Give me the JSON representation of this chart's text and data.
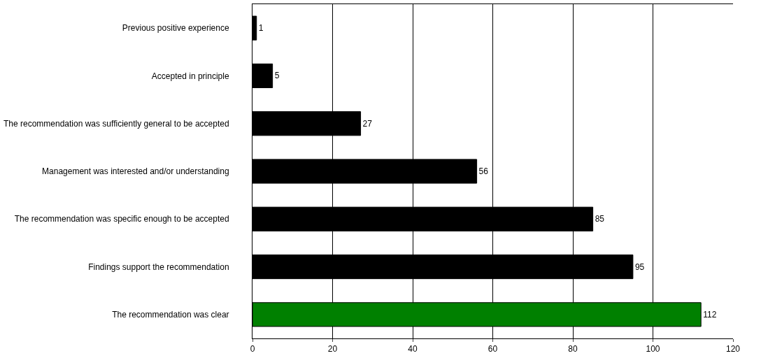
{
  "chart_data": {
    "type": "bar",
    "orientation": "horizontal",
    "categories": [
      "Previous positive experience",
      "Accepted in principle",
      "The recommendation was sufficiently general to be accepted",
      "Management was interested and/or understanding",
      "The recommendation was specific enough to be accepted",
      "Findings support the recommendation",
      "The recommendation was clear"
    ],
    "values": [
      1,
      5,
      27,
      56,
      85,
      95,
      112
    ],
    "colors": [
      "#000000",
      "#000000",
      "#000000",
      "#000000",
      "#000000",
      "#000000",
      "#008000"
    ],
    "xlim": [
      0,
      120
    ],
    "xticks": [
      0,
      20,
      40,
      60,
      80,
      100,
      120
    ],
    "grid": "x",
    "data_labels": true
  }
}
